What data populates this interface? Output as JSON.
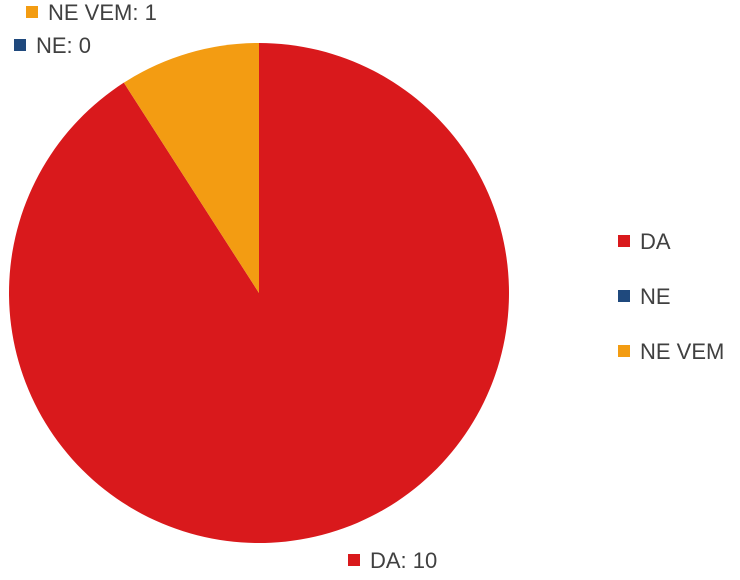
{
  "chart_data": {
    "type": "pie",
    "title": "",
    "categories": [
      "DA",
      "NE",
      "NE VEM"
    ],
    "values": [
      10,
      0,
      1
    ],
    "colors": [
      "#d9191c",
      "#1f497d",
      "#f39c12"
    ],
    "data_labels": [
      "DA: 10",
      "NE: 0",
      "NE VEM: 1"
    ],
    "legend": {
      "position": "right",
      "entries": [
        "DA",
        "NE",
        "NE VEM"
      ]
    }
  }
}
